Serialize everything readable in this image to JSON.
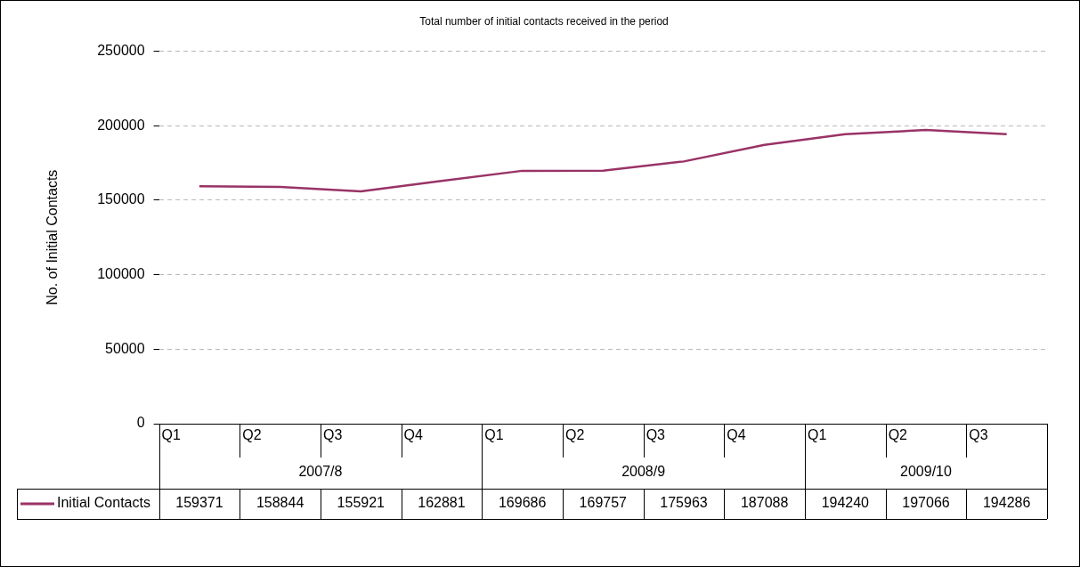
{
  "chart_data": {
    "type": "line",
    "title": "Total number of initial contacts received in the period",
    "ylabel": "No. of Initial Contacts",
    "categories": [
      "Q1",
      "Q2",
      "Q3",
      "Q4",
      "Q1",
      "Q2",
      "Q3",
      "Q4",
      "Q1",
      "Q2",
      "Q3"
    ],
    "annotations": [
      "2007/8",
      "2008/9",
      "2009/10"
    ],
    "series": [
      {
        "name": "Initial Contacts",
        "color": "#993366",
        "values": [
          159371,
          158844,
          155921,
          162881,
          169686,
          169757,
          175963,
          187088,
          194240,
          197066,
          194286
        ]
      }
    ],
    "ylim": [
      0,
      250000
    ],
    "yticks": [
      0,
      50000,
      100000,
      150000,
      200000,
      250000
    ],
    "grid": "y",
    "legend": "bottom left",
    "marker": "none",
    "line_style": "solid",
    "data_labels": true
  }
}
